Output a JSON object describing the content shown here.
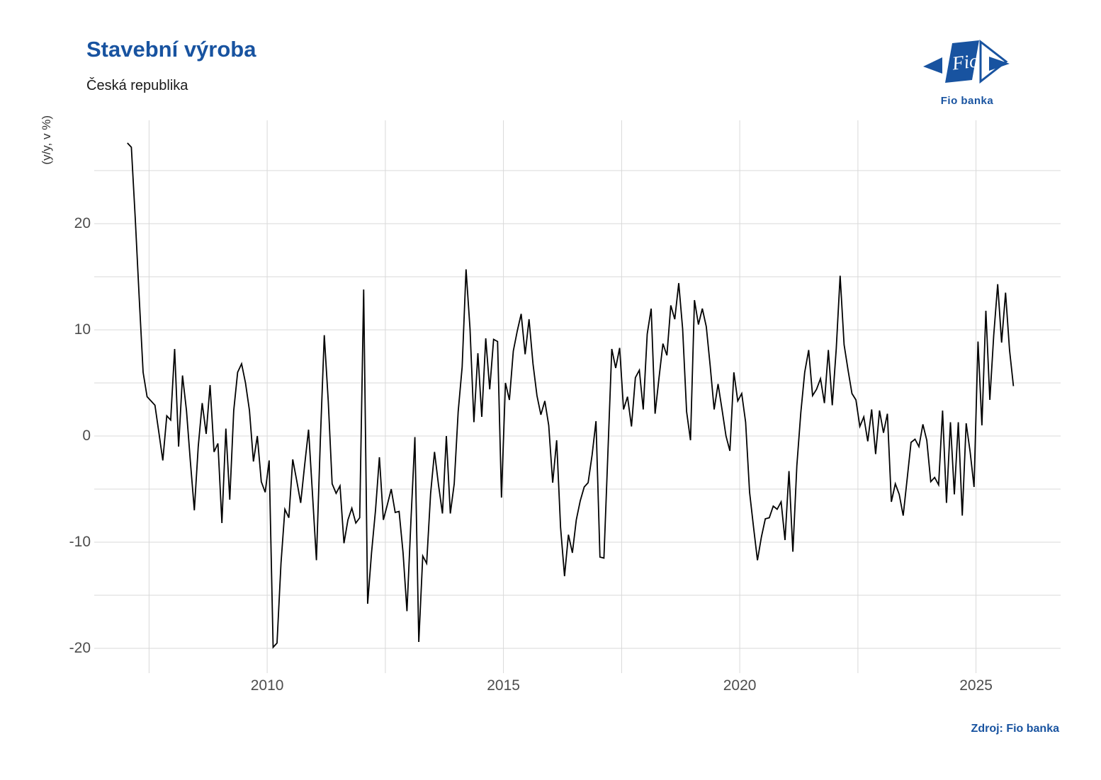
{
  "header": {
    "title": "Stavební výroba",
    "subtitle": "Česká republika"
  },
  "logo": {
    "mark": "Fio",
    "caption": "Fio banka"
  },
  "source": {
    "label": "Zdroj: Fio banka"
  },
  "colors": {
    "accent": "#1853A0",
    "grid": "#d9d9d9",
    "tick_text": "#4d4d4d",
    "line": "#000000"
  },
  "chart_data": {
    "type": "line",
    "title": "Stavební výroba",
    "subtitle": "Česká republika",
    "ylabel": "(y/y, v %)",
    "xlabel": "",
    "source_label": "Zdroj: Fio banka",
    "series_name": "Stavební výroba, meziroční změna v %",
    "frequency": "monthly",
    "start": {
      "year": 2007,
      "month": 1
    },
    "end": {
      "year": 2025,
      "month": 10
    },
    "xlim": [
      2006.34,
      2026.79
    ],
    "ylim": [
      -22.33,
      29.73
    ],
    "x_tick_years": [
      2010,
      2015,
      2020,
      2025
    ],
    "x_tick_labels": [
      "2010",
      "2015",
      "2020",
      "2025"
    ],
    "x_minor_grid_years": [
      2007.5,
      2012.5,
      2017.5,
      2022.5
    ],
    "y_tick_values": [
      20,
      10,
      0,
      -10,
      -20
    ],
    "y_tick_labels": [
      "20",
      "10",
      "0",
      "-10",
      "-20"
    ],
    "y_grid_values": [
      25,
      20,
      15,
      10,
      5,
      0,
      -5,
      -10,
      -15,
      -20
    ],
    "grid_on": true,
    "legend": "none",
    "values": [
      27.6,
      27.2,
      20.5,
      13.0,
      6.0,
      3.7,
      3.3,
      2.9,
      0.3,
      -2.3,
      1.9,
      1.5,
      8.2,
      -1.0,
      5.7,
      2.4,
      -2.4,
      -7.0,
      -1.0,
      3.1,
      0.2,
      4.8,
      -1.5,
      -0.7,
      -8.2,
      0.7,
      -6.0,
      2.4,
      6.0,
      6.8,
      5.0,
      2.4,
      -2.4,
      0.0,
      -4.3,
      -5.3,
      -2.3,
      -19.9,
      -19.5,
      -12.0,
      -6.9,
      -7.7,
      -2.2,
      -4.2,
      -6.3,
      -2.8,
      0.6,
      -5.4,
      -11.7,
      -0.3,
      9.5,
      3.3,
      -4.5,
      -5.4,
      -4.7,
      -10.1,
      -7.9,
      -6.8,
      -8.2,
      -7.7,
      13.8,
      -15.8,
      -11.0,
      -7.0,
      -2.0,
      -7.9,
      -6.5,
      -5.0,
      -7.2,
      -7.1,
      -11.0,
      -16.5,
      -8.0,
      -0.1,
      -19.4,
      -11.3,
      -12.0,
      -5.4,
      -1.5,
      -4.6,
      -7.3,
      0.0,
      -7.3,
      -4.5,
      2.3,
      6.5,
      15.7,
      10.1,
      1.3,
      7.8,
      1.8,
      9.2,
      4.4,
      9.1,
      8.9,
      -5.8,
      5.0,
      3.4,
      8.0,
      9.9,
      11.5,
      7.7,
      11.0,
      6.8,
      3.8,
      2.0,
      3.3,
      1.0,
      -4.4,
      -0.4,
      -8.6,
      -13.2,
      -9.3,
      -11.0,
      -7.9,
      -6.1,
      -4.8,
      -4.4,
      -1.8,
      1.4,
      -11.4,
      -11.5,
      -1.8,
      8.2,
      6.4,
      8.3,
      2.5,
      3.7,
      0.9,
      5.5,
      6.2,
      2.5,
      9.6,
      12.0,
      2.1,
      5.5,
      8.7,
      7.6,
      12.3,
      11.0,
      14.4,
      10.1,
      2.3,
      -0.4,
      12.8,
      10.5,
      12.0,
      10.3,
      6.6,
      2.5,
      4.9,
      2.5,
      0.0,
      -1.4,
      6.0,
      3.3,
      4.0,
      1.3,
      -5.3,
      -8.6,
      -11.7,
      -9.5,
      -7.8,
      -7.7,
      -6.6,
      -6.9,
      -6.2,
      -9.8,
      -3.3,
      -10.9,
      -2.8,
      2.2,
      6.0,
      8.1,
      3.8,
      4.4,
      5.4,
      3.1,
      8.1,
      2.9,
      8.2,
      15.1,
      8.6,
      6.2,
      4.0,
      3.4,
      0.9,
      1.8,
      -0.5,
      2.5,
      -1.7,
      2.4,
      0.3,
      2.1,
      -6.2,
      -4.5,
      -5.5,
      -7.5,
      -4.1,
      -0.6,
      -0.3,
      -1.0,
      1.1,
      -0.4,
      -4.3,
      -3.9,
      -4.6,
      2.4,
      -6.3,
      1.3,
      -5.5,
      1.3,
      -7.5,
      1.2,
      -1.5,
      -4.8,
      8.9,
      1.0,
      11.8,
      3.4,
      9.5,
      14.3,
      8.8,
      13.5,
      8.1,
      4.7
    ]
  }
}
